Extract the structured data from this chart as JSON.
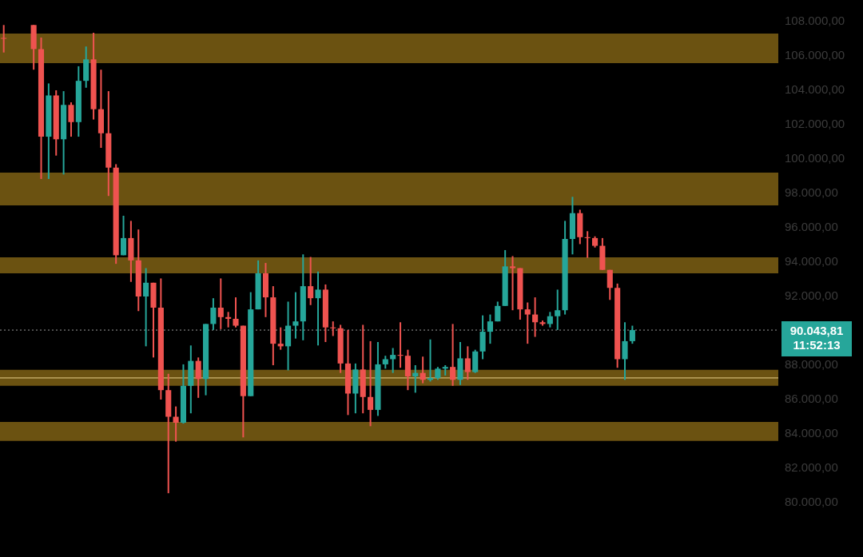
{
  "chart_data": {
    "type": "candlestick",
    "categories": [
      null,
      null,
      null,
      null,
      null,
      null,
      null,
      null,
      null,
      null,
      null,
      null,
      null,
      null,
      null,
      null,
      null,
      null,
      null,
      null,
      null,
      null,
      null,
      null,
      null,
      null,
      null,
      null,
      null,
      null,
      null,
      null,
      null,
      null,
      null,
      null,
      null,
      null,
      null,
      null,
      null,
      null,
      null,
      null,
      null,
      null,
      null,
      null,
      null,
      null,
      null,
      null,
      null,
      null,
      null,
      null,
      null,
      null,
      null,
      null,
      null,
      null,
      null,
      null,
      null,
      null,
      null,
      null,
      null,
      null,
      null,
      null,
      null,
      null,
      null,
      null,
      null,
      null,
      null,
      null,
      null,
      null,
      null,
      null,
      null,
      null,
      null,
      null,
      null,
      null,
      null,
      null,
      null,
      null,
      null,
      null,
      null,
      null,
      null,
      null,
      null,
      null,
      null,
      null
    ],
    "ohlc": [
      [
        107000,
        107800,
        106200,
        107000
      ],
      null,
      null,
      null,
      [
        107800,
        107800,
        105200,
        106400
      ],
      [
        106400,
        107070,
        98840,
        101300
      ],
      [
        101300,
        104400,
        98840,
        103700
      ],
      [
        103700,
        104000,
        100200,
        101150
      ],
      [
        101150,
        103950,
        99100,
        103150
      ],
      [
        103150,
        103300,
        101300,
        102150
      ],
      [
        102150,
        105400,
        101300,
        104550
      ],
      [
        104550,
        106550,
        104150,
        105800
      ],
      [
        105800,
        107350,
        102300,
        102900
      ],
      [
        102900,
        105200,
        100650,
        101500
      ],
      [
        101500,
        103950,
        97850,
        99500
      ],
      [
        99500,
        99700,
        93900,
        94400
      ],
      [
        94400,
        96700,
        94400,
        95400
      ],
      [
        95400,
        96400,
        92850,
        94100
      ],
      [
        94100,
        95900,
        91150,
        92000
      ],
      [
        92000,
        93650,
        89100,
        92800
      ],
      [
        92800,
        92800,
        88450,
        91350
      ],
      [
        91350,
        93050,
        86000,
        86550
      ],
      [
        86550,
        87500,
        80550,
        85000
      ],
      [
        85000,
        85600,
        83550,
        84650
      ],
      [
        84650,
        88050,
        84600,
        86800
      ],
      [
        86800,
        89150,
        85200,
        88250
      ],
      [
        88250,
        88450,
        86100,
        87200
      ],
      [
        87200,
        90400,
        86250,
        90400
      ],
      [
        90400,
        91900,
        90050,
        91350
      ],
      [
        91350,
        93050,
        90100,
        90800
      ],
      [
        90800,
        91100,
        90200,
        90700
      ],
      [
        90700,
        91950,
        90200,
        90300
      ],
      [
        90300,
        90300,
        83800,
        86200
      ],
      [
        86200,
        92250,
        86200,
        91250
      ],
      [
        91250,
        94100,
        91250,
        93350
      ],
      [
        93350,
        93950,
        90800,
        91950
      ],
      [
        91950,
        92600,
        88000,
        89250
      ],
      [
        89250,
        90200,
        88900,
        89100
      ],
      [
        89100,
        91700,
        87700,
        90300
      ],
      [
        90300,
        92250,
        89550,
        90550
      ],
      [
        90550,
        94450,
        89450,
        92600
      ],
      [
        92600,
        94300,
        91500,
        91900
      ],
      [
        91900,
        93450,
        89150,
        92400
      ],
      [
        92400,
        92700,
        89350,
        90200
      ],
      [
        90200,
        90550,
        89700,
        90150
      ],
      [
        90150,
        90350,
        87550,
        88100
      ],
      [
        88100,
        90050,
        85100,
        86350
      ],
      [
        86350,
        88100,
        85200,
        87750
      ],
      [
        87750,
        90350,
        85200,
        86150
      ],
      [
        86150,
        89400,
        84450,
        85400
      ],
      [
        85400,
        89350,
        85050,
        88050
      ],
      [
        88050,
        88550,
        87800,
        88350
      ],
      [
        88350,
        89000,
        87550,
        88600
      ],
      [
        88600,
        90500,
        87850,
        88550
      ],
      [
        88550,
        88900,
        86550,
        87350
      ],
      [
        87350,
        88000,
        86400,
        87550
      ],
      [
        87550,
        88500,
        86950,
        87150
      ],
      [
        87150,
        89500,
        87050,
        87250
      ],
      [
        87250,
        87900,
        87150,
        87800
      ],
      [
        87800,
        88000,
        87400,
        87900
      ],
      [
        87900,
        90400,
        86800,
        87150
      ],
      [
        87150,
        89350,
        86850,
        88400
      ],
      [
        88400,
        89100,
        87150,
        87600
      ],
      [
        87600,
        88900,
        87550,
        88800
      ],
      [
        88800,
        90900,
        88350,
        89950
      ],
      [
        89950,
        90950,
        89250,
        90550
      ],
      [
        90550,
        91700,
        90550,
        91450
      ],
      [
        91450,
        94700,
        91450,
        93750
      ],
      [
        93750,
        94350,
        91200,
        93650
      ],
      [
        93650,
        93650,
        90650,
        91250
      ],
      [
        91250,
        91650,
        89250,
        90950
      ],
      [
        90950,
        91950,
        89650,
        90500
      ],
      [
        90500,
        90600,
        90300,
        90400
      ],
      [
        90400,
        91100,
        90200,
        90850
      ],
      [
        90850,
        92400,
        90050,
        91200
      ],
      [
        91200,
        96400,
        90950,
        95350
      ],
      [
        95350,
        97800,
        94450,
        96850
      ],
      [
        96850,
        97050,
        95050,
        95450
      ],
      [
        95450,
        95800,
        94250,
        95400
      ],
      [
        95400,
        95500,
        94850,
        94950
      ],
      [
        94950,
        95400,
        93550,
        93550
      ],
      [
        93550,
        93550,
        91800,
        92500
      ],
      [
        92500,
        92750,
        87850,
        88350
      ],
      [
        88350,
        90500,
        87150,
        89400
      ],
      [
        89400,
        90300,
        89250,
        90044
      ],
      null,
      null,
      null,
      null,
      null,
      null,
      null,
      null,
      null,
      null,
      null,
      null,
      null,
      null,
      null,
      null,
      null,
      null,
      null
    ],
    "colors": [
      "#ef5350",
      null,
      null,
      null,
      "#ef5350",
      "#ef5350",
      "#26a69a",
      "#ef5350",
      "#26a69a",
      "#ef5350",
      "#26a69a",
      "#26a69a",
      "#ef5350",
      "#ef5350",
      "#ef5350",
      "#ef5350",
      "#26a69a",
      "#ef5350",
      "#ef5350",
      "#26a69a",
      "#ef5350",
      "#ef5350",
      "#ef5350",
      "#ef5350",
      "#26a69a",
      "#26a69a",
      "#ef5350",
      "#26a69a",
      "#26a69a",
      "#ef5350",
      "#ef5350",
      "#ef5350",
      "#ef5350",
      "#26a69a",
      "#26a69a",
      "#ef5350",
      "#ef5350",
      "#ef5350",
      "#26a69a",
      "#26a69a",
      "#26a69a",
      "#ef5350",
      "#26a69a",
      "#ef5350",
      "#ef5350",
      "#ef5350",
      "#ef5350",
      "#26a69a",
      "#ef5350",
      "#ef5350",
      "#26a69a",
      "#26a69a",
      "#26a69a",
      "#ef5350",
      "#ef5350",
      "#26a69a",
      "#ef5350",
      "#26a69a",
      "#26a69a",
      "#26a69a",
      "#ef5350",
      "#26a69a",
      "#ef5350",
      "#26a69a",
      "#26a69a",
      "#26a69a",
      "#26a69a",
      "#26a69a",
      "#ef5350",
      "#ef5350",
      "#ef5350",
      "#ef5350",
      "#ef5350",
      "#26a69a",
      "#26a69a",
      "#26a69a",
      "#26a69a",
      "#ef5350",
      "#ef5350",
      "#ef5350",
      "#ef5350",
      "#ef5350",
      "#ef5350",
      "#26a69a",
      "#26a69a",
      null,
      null,
      null,
      null,
      null,
      null,
      null,
      null,
      null,
      null,
      null,
      null,
      null,
      null,
      null,
      null,
      null,
      null,
      null
    ],
    "ylim": [
      80000,
      108000
    ],
    "yticks": [
      {
        "value": 80000,
        "label": "80.000,00"
      },
      {
        "value": 82000,
        "label": "82.000,00"
      },
      {
        "value": 84000,
        "label": "84.000,00"
      },
      {
        "value": 86000,
        "label": "86.000,00"
      },
      {
        "value": 88000,
        "label": "88.000,00"
      },
      {
        "value": 90000,
        "label": null
      },
      {
        "value": 92000,
        "label": "92.000,00"
      },
      {
        "value": 94000,
        "label": "94.000,00"
      },
      {
        "value": 96000,
        "label": "96.000,00"
      },
      {
        "value": 98000,
        "label": "98.000,00"
      },
      {
        "value": 100000,
        "label": "100.000,00"
      },
      {
        "value": 102000,
        "label": "102.000,00"
      },
      {
        "value": 104000,
        "label": "104.000,00"
      },
      {
        "value": 106000,
        "label": "106.000,00"
      },
      {
        "value": 108000,
        "label": "108.000,00"
      }
    ],
    "tick_labels": "y",
    "legend": false,
    "bands": [
      {
        "axis": "y",
        "from": 105580,
        "to": 107300,
        "color": "#6b5211"
      },
      {
        "axis": "y",
        "from": 97300,
        "to": 99210,
        "color": "#6b5211"
      },
      {
        "axis": "y",
        "from": 93350,
        "to": 94280,
        "color": "#6b5211"
      },
      {
        "axis": "y",
        "from": 86800,
        "to": 87730,
        "color": "#6b5211"
      },
      {
        "axis": "y",
        "from": 83590,
        "to": 84700,
        "color": "#6b5211"
      }
    ],
    "ref_lines": [
      {
        "axis": "y",
        "value": 87260,
        "color": "#e8d08a",
        "line_style": "solid"
      },
      {
        "axis": "y",
        "value": 90043.81,
        "label": "90.043,81",
        "color": "#9a9a9a",
        "line_style": "dotted"
      }
    ],
    "annotations": [
      "11:52:13"
    ]
  }
}
